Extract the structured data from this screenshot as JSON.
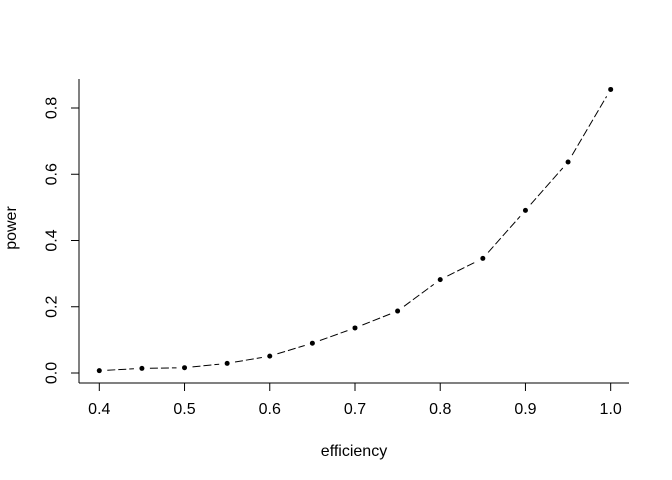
{
  "figure": {
    "background": "#ffffff",
    "foreground": "#000000"
  },
  "chart_data": {
    "type": "line",
    "title": "",
    "xlabel": "efficiency",
    "ylabel": "power",
    "x": [
      0.4,
      0.45,
      0.5,
      0.55,
      0.6,
      0.65,
      0.7,
      0.75,
      0.8,
      0.85,
      0.9,
      0.95,
      1.0
    ],
    "series": [
      {
        "name": "power",
        "values": [
          0.007,
          0.014,
          0.016,
          0.029,
          0.051,
          0.09,
          0.136,
          0.187,
          0.282,
          0.346,
          0.491,
          0.637,
          0.856
        ]
      }
    ],
    "x_ticks": [
      0.4,
      0.5,
      0.6,
      0.7,
      0.8,
      0.9,
      1.0
    ],
    "x_tick_labels": [
      "0.4",
      "0.5",
      "0.6",
      "0.7",
      "0.8",
      "0.9",
      "1.0"
    ],
    "y_ticks": [
      0.0,
      0.2,
      0.4,
      0.6,
      0.8
    ],
    "y_tick_labels": [
      "0.0",
      "0.2",
      "0.4",
      "0.6",
      "0.8"
    ],
    "xlim": [
      0.376,
      1.024
    ],
    "ylim": [
      -0.03,
      0.888
    ],
    "grid": false,
    "legend_position": "none",
    "marker": "filled-circle",
    "line_style": "dashed",
    "line_color": "#000000",
    "point_color": "#000000",
    "axis_color": "#000000",
    "background": "#ffffff"
  }
}
